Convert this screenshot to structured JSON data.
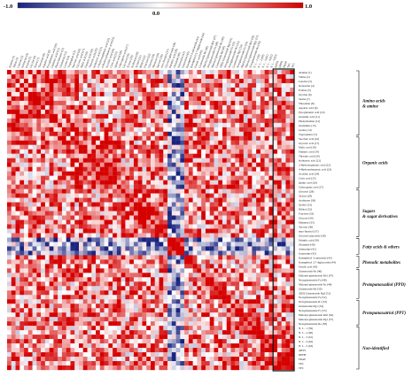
{
  "chart_data": {
    "type": "heatmap",
    "title": "",
    "color_scale": {
      "min_label": "-1.0",
      "mid_label": "0.0",
      "max_label": "1.0",
      "min_color": "#1a237e",
      "mid_color": "#ffffff",
      "max_color": "#d50000"
    },
    "row_labels": [
      "Alanine (1)",
      "Valine (2)",
      "Leucine (3)",
      "Isoleucine (4)",
      "Proline (5)",
      "Glycine (6)",
      "Serine (7)",
      "Threonine (8)",
      "Aspartic acid (9)",
      "Pyroglutamic acid (10)",
      "Glutamic acid (11)",
      "Phenylalanine (12)",
      "Glutamine (13)",
      "Lysine (14)",
      "Tryptophan (15)",
      "Succinic acid (16)",
      "Glyceric acid (17)",
      "Malic acid (18)",
      "Fumaric acid (19)",
      "Threonic acid (20)",
      "Isobutyric acid (21)",
      "2-Hydroxyglutaric acid (22)",
      "4-Hydroxybutanoic acid (23)",
      "Aconitic acid (24)",
      "Citric acid (25)",
      "Quinic acid (26)",
      "Chlorogenic acid (27)",
      "Glycerol (28)",
      "Xylose (29)",
      "Arabinose (30)",
      "Xylitol (31)",
      "Ribitol (32)",
      "Fructose (33)",
      "Glucose (34)",
      "Mannose (35)",
      "Sucrose (36)",
      "myo-Inositol (37)",
      "Glycerol-glucoside (38)",
      "Palmitic acid (39)",
      "Oleamide (40)",
      "Adenosine (41)",
      "Guanosine (42)",
      "Kaempferol 3-rutinoside (43)",
      "Kaempferol 3,7-diglucoside (44)",
      "Ferulic acid (45)",
      "Ginsenoside Re (46)",
      "Malonyl-ginsenoside Rb1 (47)",
      "Notoginsenoside Fa (48)",
      "Malonyl-ginsenoside Rc (49)",
      "Ginsenoside Rd (50)",
      "20(S)-Ginsenoside Rg3 (51)",
      "Notoginsenoside Fe (52)",
      "Notoginsenoside R1 (53)",
      "Ginsenoside Rg1 (54)",
      "Notoginsenoside Fc (55)",
      "Malonyl-ginsenoside Rb2 (56)",
      "Malonyl-ginsenoside Rg1 (57)",
      "Notoginsenoside Ro (58)",
      "N. I. - 1 (59)",
      "N. I. - 2 (60)",
      "N. I. - 3 (61)",
      "N. I. - 4 (62)",
      "N. I. - 5 (63)",
      "ABTS",
      "DPPH",
      "FRAP",
      "TPC",
      "TFC"
    ],
    "groups": [
      {
        "label_lines": [
          "Amino acids",
          "& amine"
        ],
        "from": 0,
        "to": 14
      },
      {
        "label_lines": [
          "Organic acids"
        ],
        "from": 15,
        "to": 26
      },
      {
        "label_lines": [
          "Sugars",
          "& sugar derivatives"
        ],
        "from": 27,
        "to": 37
      },
      {
        "label_lines": [
          "Fatty acids & others"
        ],
        "from": 38,
        "to": 41
      },
      {
        "label_lines": [
          "Phenolic metabolites"
        ],
        "from": 42,
        "to": 44
      },
      {
        "label_lines": [
          "Protopanaxadiol (PPD)"
        ],
        "from": 45,
        "to": 51
      },
      {
        "label_lines": [
          "Protopanaxatriol (PPT)"
        ],
        "from": 52,
        "to": 57
      },
      {
        "label_lines": [
          "Non-identified"
        ],
        "from": 58,
        "to": 67
      }
    ],
    "highlight_columns": [
      "ABTS",
      "DPPH",
      "FRAP",
      "TPC",
      "TFC"
    ],
    "value_range": [
      -1.0,
      1.0
    ]
  }
}
